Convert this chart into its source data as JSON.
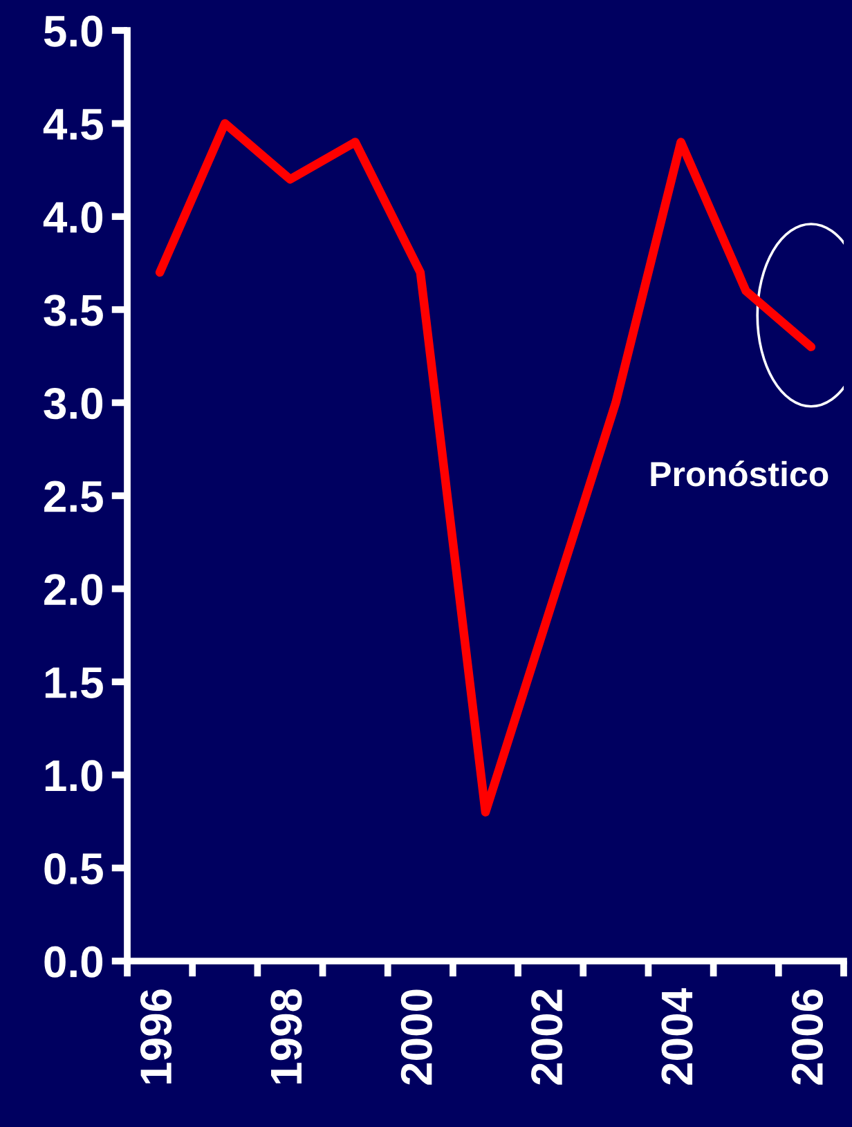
{
  "chart_data": {
    "type": "line",
    "categories": [
      "1996",
      null,
      "1998",
      null,
      "2000",
      null,
      "2002",
      null,
      "2004",
      null,
      "2006"
    ],
    "series": [
      {
        "color": "#ff0000",
        "values": [
          3.7,
          4.5,
          4.2,
          4.4,
          3.7,
          0.8,
          1.9,
          3.0,
          4.4,
          3.6,
          3.3
        ]
      }
    ],
    "ylim": [
      0,
      5
    ],
    "yticks": [
      {
        "value": 0,
        "label": "0.0"
      },
      {
        "value": 0.5,
        "label": "0.5"
      },
      {
        "value": 1,
        "label": "1.0"
      },
      {
        "value": 1.5,
        "label": "1.5"
      },
      {
        "value": 2,
        "label": "2.0"
      },
      {
        "value": 2.5,
        "label": "2.5"
      },
      {
        "value": 3,
        "label": "3.0"
      },
      {
        "value": 3.5,
        "label": "3.5"
      },
      {
        "value": 4,
        "label": "4.0"
      },
      {
        "value": 4.5,
        "label": "4.5"
      },
      {
        "value": 5,
        "label": "5.0"
      }
    ],
    "annotations": [
      "Pronóstico"
    ],
    "grid": false,
    "legend": false,
    "marker": "none",
    "line_style": "solid"
  }
}
